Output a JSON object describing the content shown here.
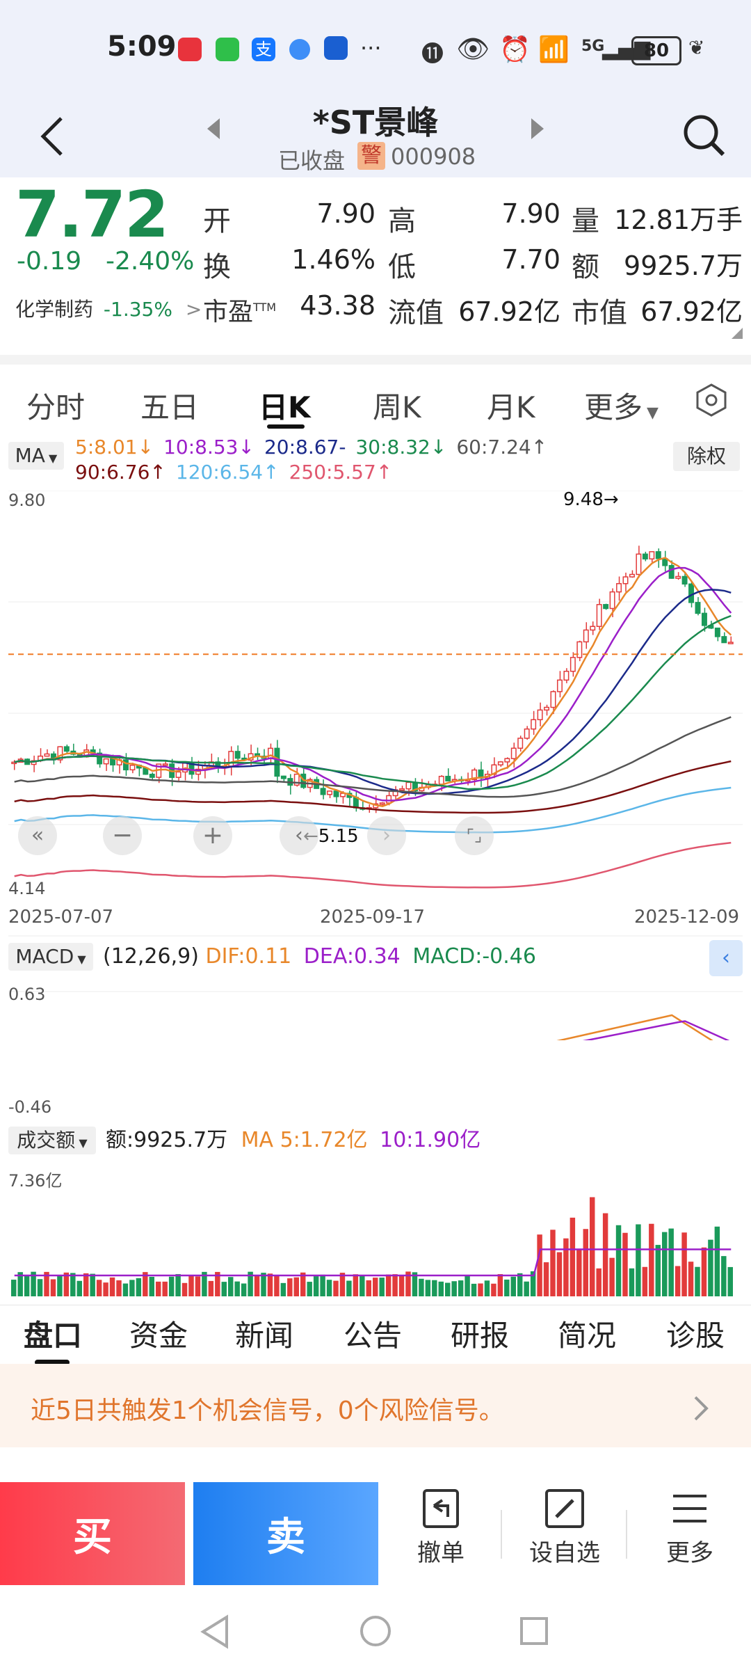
{
  "status": {
    "time": "5:09",
    "net": "5G",
    "battery": "80"
  },
  "header": {
    "title": "*ST景峰",
    "market_status": "已收盘",
    "warn_badge": "警",
    "code": "000908"
  },
  "quote": {
    "price": "7.72",
    "change": "-0.19",
    "change_pct": "-2.40%",
    "sector": "化学制药",
    "sector_pct": "-1.35%",
    "open_label": "开",
    "open": "7.90",
    "high_label": "高",
    "high": "7.90",
    "volume_label": "量",
    "volume": "12.81万手",
    "turnover_label": "换",
    "turnover": "1.46%",
    "low_label": "低",
    "low": "7.70",
    "amount_label": "额",
    "amount": "9925.7万",
    "pe_label": "市盈",
    "pe_sup": "TTM",
    "pe": "43.38",
    "float_cap_label": "流值",
    "float_cap": "67.92亿",
    "mkt_cap_label": "市值",
    "mkt_cap": "67.92亿"
  },
  "kline_tabs": [
    "分时",
    "五日",
    "日K",
    "周K",
    "月K",
    "更多"
  ],
  "ma_legend": {
    "selector": "MA",
    "items": [
      {
        "text": "5:8.01",
        "arrow": "↓",
        "color": "#e8872a"
      },
      {
        "text": "10:8.53",
        "arrow": "↓",
        "color": "#9b1fc9"
      },
      {
        "text": "20:8.67",
        "arrow": "-",
        "color": "#1b2a8a"
      },
      {
        "text": "30:8.32",
        "arrow": "↓",
        "color": "#1a8a4e"
      },
      {
        "text": "60:7.24",
        "arrow": "↑",
        "color": "#555555"
      },
      {
        "text": "90:6.76",
        "arrow": "↑",
        "color": "#7a0f0f"
      },
      {
        "text": "120:6.54",
        "arrow": "↑",
        "color": "#5bb6e8"
      },
      {
        "text": "250:5.57",
        "arrow": "↑",
        "color": "#e0566e"
      }
    ],
    "adjust": "除权"
  },
  "chart_data": [
    {
      "type": "candlestick",
      "ylim": [
        4.14,
        9.8
      ],
      "y_top_label": "9.80",
      "y_bottom_label": "4.14",
      "x_labels": [
        "2025-07-07",
        "2025-09-17",
        "2025-12-09"
      ],
      "max_annotation": "9.48→",
      "min_annotation": "←5.15",
      "last_close": 7.72
    },
    {
      "type": "line",
      "name": "MACD",
      "selector": "MACD",
      "params": "(12,26,9)",
      "dif": "DIF:0.11",
      "dea": "DEA:0.34",
      "macd": "MACD:-0.46",
      "y_top_label": "0.63",
      "y_bottom_label": "-0.46"
    },
    {
      "type": "bar",
      "name": "成交额",
      "selector": "成交额",
      "amount": "额:9925.7万",
      "ma5": "MA 5:1.72亿",
      "ma10": "10:1.90亿",
      "y_top_label": "7.36亿"
    }
  ],
  "bottom_tabs": [
    "盘口",
    "资金",
    "新闻",
    "公告",
    "研报",
    "简况",
    "诊股"
  ],
  "signal_text": "近5日共触发1个机会信号，0个风险信号。",
  "actions": {
    "buy": "买",
    "sell": "卖",
    "cancel": "撤单",
    "watch": "设自选",
    "more": "更多"
  }
}
